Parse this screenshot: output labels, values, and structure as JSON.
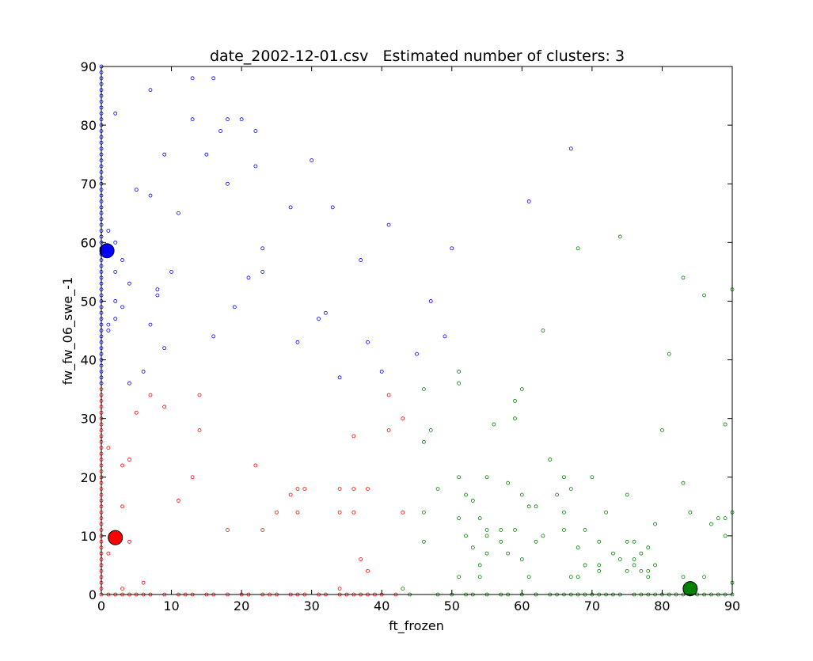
{
  "chart_data": {
    "type": "scatter",
    "title": "date_2002-12-01.csv   Estimated number of clusters: 3",
    "xlabel": "ft_frozen",
    "ylabel": "fw_fw_06_swe_-1",
    "xlim": [
      0,
      90
    ],
    "ylim": [
      0,
      90
    ],
    "xticks": [
      0,
      10,
      20,
      30,
      40,
      50,
      60,
      70,
      80,
      90
    ],
    "yticks": [
      0,
      10,
      20,
      30,
      40,
      50,
      60,
      70,
      80,
      90
    ],
    "grid": false,
    "legend": "none",
    "clusters": [
      {
        "color": "#0000ff",
        "center": [
          0.8,
          58.6
        ],
        "points": [
          [
            0,
            36
          ],
          [
            0,
            37
          ],
          [
            0,
            38
          ],
          [
            0,
            39
          ],
          [
            0,
            40
          ],
          [
            0,
            41
          ],
          [
            0,
            42
          ],
          [
            0,
            43
          ],
          [
            0,
            44
          ],
          [
            0,
            45
          ],
          [
            0,
            46
          ],
          [
            0,
            47
          ],
          [
            0,
            48
          ],
          [
            0,
            49
          ],
          [
            0,
            50
          ],
          [
            0,
            51
          ],
          [
            0,
            52
          ],
          [
            0,
            53
          ],
          [
            0,
            54
          ],
          [
            0,
            55
          ],
          [
            0,
            56
          ],
          [
            0,
            57
          ],
          [
            0,
            58
          ],
          [
            0,
            59
          ],
          [
            0,
            60
          ],
          [
            0,
            61
          ],
          [
            0,
            62
          ],
          [
            0,
            63
          ],
          [
            0,
            64
          ],
          [
            0,
            65
          ],
          [
            0,
            66
          ],
          [
            0,
            67
          ],
          [
            0,
            68
          ],
          [
            0,
            69
          ],
          [
            0,
            70
          ],
          [
            0,
            71
          ],
          [
            0,
            72
          ],
          [
            0,
            73
          ],
          [
            0,
            74
          ],
          [
            0,
            75
          ],
          [
            0,
            76
          ],
          [
            0,
            77
          ],
          [
            0,
            78
          ],
          [
            0,
            79
          ],
          [
            0,
            80
          ],
          [
            0,
            81
          ],
          [
            0,
            82
          ],
          [
            0,
            83
          ],
          [
            0,
            84
          ],
          [
            0,
            85
          ],
          [
            0,
            86
          ],
          [
            0,
            87
          ],
          [
            0,
            88
          ],
          [
            0,
            89
          ],
          [
            0,
            90
          ],
          [
            1,
            62
          ],
          [
            1,
            46
          ],
          [
            1,
            45
          ],
          [
            2,
            82
          ],
          [
            2,
            60
          ],
          [
            2,
            55
          ],
          [
            2,
            50
          ],
          [
            2,
            47
          ],
          [
            3,
            57
          ],
          [
            3,
            49
          ],
          [
            4,
            53
          ],
          [
            4,
            36
          ],
          [
            5,
            69
          ],
          [
            6,
            38
          ],
          [
            7,
            86
          ],
          [
            7,
            68
          ],
          [
            7,
            46
          ],
          [
            8,
            52
          ],
          [
            8,
            51
          ],
          [
            9,
            75
          ],
          [
            9,
            42
          ],
          [
            10,
            55
          ],
          [
            11,
            65
          ],
          [
            13,
            88
          ],
          [
            13,
            81
          ],
          [
            15,
            75
          ],
          [
            16,
            88
          ],
          [
            16,
            44
          ],
          [
            17,
            79
          ],
          [
            18,
            81
          ],
          [
            18,
            70
          ],
          [
            19,
            49
          ],
          [
            20,
            81
          ],
          [
            21,
            54
          ],
          [
            22,
            79
          ],
          [
            22,
            73
          ],
          [
            23,
            59
          ],
          [
            23,
            55
          ],
          [
            27,
            66
          ],
          [
            28,
            43
          ],
          [
            30,
            74
          ],
          [
            31,
            47
          ],
          [
            32,
            48
          ],
          [
            33,
            66
          ],
          [
            34,
            37
          ],
          [
            37,
            57
          ],
          [
            38,
            43
          ],
          [
            40,
            38
          ],
          [
            41,
            63
          ],
          [
            45,
            41
          ],
          [
            47,
            50
          ],
          [
            49,
            44
          ],
          [
            50,
            59
          ],
          [
            61,
            67
          ],
          [
            67,
            76
          ]
        ]
      },
      {
        "color": "#ff0000",
        "center": [
          2.0,
          9.7
        ],
        "points": [
          [
            0,
            1
          ],
          [
            0,
            2
          ],
          [
            0,
            3
          ],
          [
            0,
            4
          ],
          [
            0,
            5
          ],
          [
            0,
            6
          ],
          [
            0,
            7
          ],
          [
            0,
            8
          ],
          [
            0,
            9
          ],
          [
            0,
            10
          ],
          [
            0,
            11
          ],
          [
            0,
            12
          ],
          [
            0,
            13
          ],
          [
            0,
            14
          ],
          [
            0,
            15
          ],
          [
            0,
            16
          ],
          [
            0,
            17
          ],
          [
            0,
            18
          ],
          [
            0,
            19
          ],
          [
            0,
            20
          ],
          [
            0,
            21
          ],
          [
            0,
            22
          ],
          [
            0,
            23
          ],
          [
            0,
            24
          ],
          [
            0,
            25
          ],
          [
            0,
            26
          ],
          [
            0,
            27
          ],
          [
            0,
            28
          ],
          [
            0,
            29
          ],
          [
            0,
            30
          ],
          [
            0,
            31
          ],
          [
            0,
            32
          ],
          [
            0,
            33
          ],
          [
            0,
            34
          ],
          [
            0,
            35
          ],
          [
            1,
            25
          ],
          [
            1,
            7
          ],
          [
            3,
            22
          ],
          [
            3,
            15
          ],
          [
            3,
            1
          ],
          [
            4,
            23
          ],
          [
            4,
            9
          ],
          [
            5,
            31
          ],
          [
            6,
            2
          ],
          [
            7,
            34
          ],
          [
            9,
            32
          ],
          [
            11,
            16
          ],
          [
            13,
            20
          ],
          [
            14,
            34
          ],
          [
            14,
            28
          ],
          [
            18,
            11
          ],
          [
            22,
            22
          ],
          [
            23,
            11
          ],
          [
            25,
            14
          ],
          [
            27,
            17
          ],
          [
            28,
            18
          ],
          [
            28,
            14
          ],
          [
            29,
            18
          ],
          [
            34,
            18
          ],
          [
            34,
            14
          ],
          [
            34,
            1
          ],
          [
            36,
            27
          ],
          [
            36,
            18
          ],
          [
            36,
            14
          ],
          [
            37,
            6
          ],
          [
            38,
            18
          ],
          [
            38,
            4
          ],
          [
            41,
            34
          ],
          [
            41,
            28
          ],
          [
            43,
            30
          ],
          [
            43,
            14
          ],
          [
            0,
            0
          ],
          [
            1,
            0
          ],
          [
            2,
            0
          ],
          [
            3,
            0
          ],
          [
            4,
            0
          ],
          [
            5,
            0
          ],
          [
            6,
            0
          ],
          [
            7,
            0
          ],
          [
            9,
            0
          ],
          [
            11,
            0
          ],
          [
            12,
            0
          ],
          [
            13,
            0
          ],
          [
            15,
            0
          ],
          [
            16,
            0
          ],
          [
            18,
            0
          ],
          [
            20,
            0
          ],
          [
            21,
            0
          ],
          [
            23,
            0
          ],
          [
            24,
            0
          ],
          [
            25,
            0
          ],
          [
            27,
            0
          ],
          [
            28,
            0
          ],
          [
            29,
            0
          ],
          [
            31,
            0
          ],
          [
            32,
            0
          ],
          [
            34,
            0
          ],
          [
            35,
            0
          ],
          [
            36,
            0
          ],
          [
            37,
            0
          ],
          [
            38,
            0
          ],
          [
            39,
            0
          ],
          [
            40,
            0
          ],
          [
            42,
            0
          ]
        ]
      },
      {
        "color": "#008000",
        "center": [
          84.0,
          1.0
        ],
        "points": [
          [
            43,
            1
          ],
          [
            46,
            35
          ],
          [
            46,
            26
          ],
          [
            46,
            14
          ],
          [
            46,
            9
          ],
          [
            47,
            28
          ],
          [
            48,
            18
          ],
          [
            51,
            38
          ],
          [
            51,
            36
          ],
          [
            51,
            20
          ],
          [
            51,
            13
          ],
          [
            51,
            3
          ],
          [
            52,
            17
          ],
          [
            52,
            10
          ],
          [
            53,
            16
          ],
          [
            53,
            8
          ],
          [
            54,
            13
          ],
          [
            54,
            5
          ],
          [
            54,
            3
          ],
          [
            55,
            20
          ],
          [
            55,
            11
          ],
          [
            55,
            10
          ],
          [
            55,
            7
          ],
          [
            56,
            29
          ],
          [
            57,
            11
          ],
          [
            57,
            9
          ],
          [
            58,
            19
          ],
          [
            58,
            7
          ],
          [
            59,
            33
          ],
          [
            59,
            30
          ],
          [
            59,
            11
          ],
          [
            60,
            35
          ],
          [
            60,
            17
          ],
          [
            60,
            6
          ],
          [
            61,
            15
          ],
          [
            61,
            3
          ],
          [
            62,
            15
          ],
          [
            62,
            9
          ],
          [
            63,
            45
          ],
          [
            63,
            10
          ],
          [
            64,
            23
          ],
          [
            65,
            17
          ],
          [
            66,
            20
          ],
          [
            66,
            14
          ],
          [
            66,
            11
          ],
          [
            67,
            18
          ],
          [
            67,
            3
          ],
          [
            68,
            59
          ],
          [
            68,
            8
          ],
          [
            68,
            3
          ],
          [
            69,
            11
          ],
          [
            69,
            5
          ],
          [
            70,
            20
          ],
          [
            71,
            9
          ],
          [
            71,
            5
          ],
          [
            71,
            4
          ],
          [
            72,
            14
          ],
          [
            73,
            7
          ],
          [
            74,
            61
          ],
          [
            74,
            6
          ],
          [
            75,
            17
          ],
          [
            75,
            9
          ],
          [
            75,
            4
          ],
          [
            76,
            9
          ],
          [
            76,
            6
          ],
          [
            76,
            5
          ],
          [
            77,
            7
          ],
          [
            77,
            4
          ],
          [
            78,
            8
          ],
          [
            78,
            4
          ],
          [
            78,
            3
          ],
          [
            79,
            12
          ],
          [
            79,
            5
          ],
          [
            80,
            28
          ],
          [
            81,
            41
          ],
          [
            83,
            54
          ],
          [
            83,
            19
          ],
          [
            83,
            3
          ],
          [
            84,
            14
          ],
          [
            86,
            51
          ],
          [
            86,
            3
          ],
          [
            87,
            12
          ],
          [
            88,
            13
          ],
          [
            89,
            29
          ],
          [
            89,
            13
          ],
          [
            89,
            10
          ],
          [
            90,
            52
          ],
          [
            90,
            14
          ],
          [
            90,
            2
          ],
          [
            44,
            0
          ],
          [
            48,
            0
          ],
          [
            50,
            0
          ],
          [
            52,
            0
          ],
          [
            53,
            0
          ],
          [
            55,
            0
          ],
          [
            57,
            0
          ],
          [
            58,
            0
          ],
          [
            60,
            0
          ],
          [
            62,
            0
          ],
          [
            64,
            0
          ],
          [
            65,
            0
          ],
          [
            66,
            0
          ],
          [
            67,
            0
          ],
          [
            68,
            0
          ],
          [
            69,
            0
          ],
          [
            70,
            0
          ],
          [
            71,
            0
          ],
          [
            72,
            0
          ],
          [
            73,
            0
          ],
          [
            74,
            0
          ],
          [
            76,
            0
          ],
          [
            77,
            0
          ],
          [
            78,
            0
          ],
          [
            79,
            0
          ],
          [
            80,
            0
          ],
          [
            81,
            0
          ],
          [
            82,
            0
          ],
          [
            83,
            0
          ],
          [
            84,
            0
          ],
          [
            85,
            0
          ],
          [
            86,
            0
          ],
          [
            87,
            0
          ],
          [
            88,
            0
          ],
          [
            89,
            0
          ],
          [
            90,
            0
          ]
        ]
      }
    ]
  }
}
